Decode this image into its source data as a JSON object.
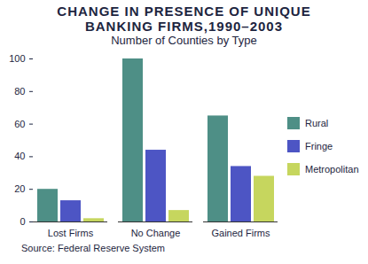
{
  "chart_data": {
    "type": "bar",
    "title": "CHANGE IN PRESENCE OF UNIQUE BANKING FIRMS,1990–2003",
    "subtitle": "Number of Counties by Type",
    "caption": "Source: Federal Reserve System",
    "categories": [
      "Lost Firms",
      "No Change",
      "Gained Firms"
    ],
    "series": [
      {
        "name": "Rural",
        "color": "#4e8f86",
        "values": [
          20,
          100,
          65
        ]
      },
      {
        "name": "Fringe",
        "color": "#4d55c4",
        "values": [
          13,
          44,
          34
        ]
      },
      {
        "name": "Metropolitan",
        "color": "#c6d65e",
        "values": [
          2,
          7,
          28
        ]
      }
    ],
    "ylim": [
      0,
      100
    ],
    "yticks": [
      0,
      20,
      40,
      60,
      80,
      100
    ],
    "grid": false,
    "legend": "right"
  }
}
